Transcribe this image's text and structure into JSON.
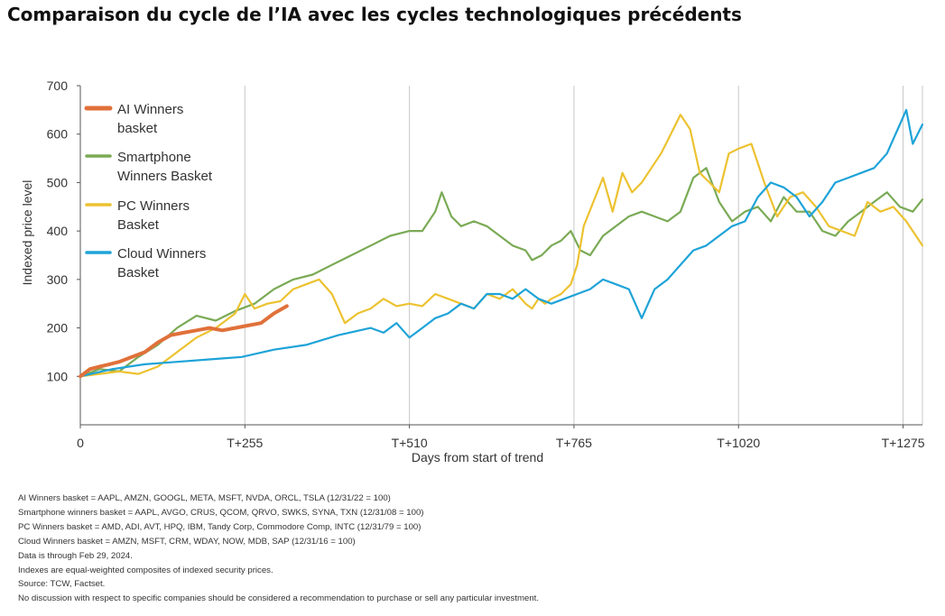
{
  "page_title": "Comparaison du cycle de l’IA avec les cycles technologiques précédents",
  "chart_data": {
    "type": "line",
    "xlabel": "Days from start of trend",
    "ylabel": "Indexed price level",
    "xlim": [
      0,
      1305
    ],
    "ylim": [
      0,
      700
    ],
    "y_ticks": [
      "100",
      "200",
      "300",
      "400",
      "500",
      "600",
      "700"
    ],
    "x_ticks": [
      {
        "value": 0,
        "label": "0"
      },
      {
        "value": 255,
        "label": "T+255"
      },
      {
        "value": 510,
        "label": "T+510"
      },
      {
        "value": 765,
        "label": "T+765"
      },
      {
        "value": 1020,
        "label": "T+1020"
      },
      {
        "value": 1275,
        "label": "T+1275"
      }
    ],
    "grid": "vertical",
    "legend_position": "top-left",
    "series": [
      {
        "name": "Smartphone Winners Basket",
        "color": "#7aaa55",
        "x": [
          0,
          30,
          60,
          90,
          120,
          150,
          180,
          210,
          240,
          270,
          300,
          330,
          360,
          390,
          420,
          450,
          480,
          510,
          530,
          550,
          560,
          575,
          590,
          610,
          630,
          650,
          670,
          690,
          700,
          715,
          730,
          745,
          760,
          775,
          790,
          810,
          830,
          850,
          870,
          890,
          910,
          930,
          950,
          970,
          990,
          1010,
          1030,
          1050,
          1070,
          1090,
          1110,
          1130,
          1150,
          1170,
          1190,
          1210,
          1230,
          1250,
          1270,
          1290,
          1305
        ],
        "values": [
          100,
          115,
          110,
          140,
          165,
          200,
          225,
          215,
          235,
          250,
          280,
          300,
          310,
          330,
          350,
          370,
          390,
          400,
          400,
          440,
          480,
          430,
          410,
          420,
          410,
          390,
          370,
          360,
          340,
          350,
          370,
          380,
          400,
          360,
          350,
          390,
          410,
          430,
          440,
          430,
          420,
          440,
          510,
          530,
          460,
          420,
          440,
          450,
          420,
          470,
          440,
          440,
          400,
          390,
          420,
          440,
          460,
          480,
          450,
          440,
          465
        ]
      },
      {
        "name": "PC Winners Basket",
        "color": "#ecc230",
        "x": [
          0,
          30,
          60,
          90,
          120,
          150,
          180,
          210,
          240,
          255,
          270,
          290,
          310,
          330,
          350,
          370,
          390,
          410,
          430,
          450,
          470,
          490,
          510,
          530,
          550,
          570,
          590,
          610,
          630,
          650,
          670,
          690,
          700,
          710,
          720,
          730,
          745,
          760,
          770,
          780,
          795,
          810,
          825,
          840,
          855,
          870,
          885,
          900,
          915,
          930,
          945,
          960,
          975,
          990,
          1005,
          1020,
          1040,
          1060,
          1080,
          1100,
          1120,
          1140,
          1160,
          1180,
          1200,
          1220,
          1240,
          1260,
          1280,
          1295,
          1305
        ],
        "values": [
          100,
          105,
          110,
          105,
          120,
          150,
          180,
          200,
          230,
          270,
          240,
          250,
          255,
          280,
          290,
          300,
          270,
          210,
          230,
          240,
          260,
          245,
          250,
          245,
          270,
          260,
          250,
          240,
          270,
          260,
          280,
          250,
          240,
          260,
          250,
          260,
          270,
          290,
          330,
          410,
          460,
          510,
          440,
          520,
          480,
          500,
          530,
          560,
          600,
          640,
          610,
          520,
          500,
          480,
          560,
          570,
          580,
          500,
          430,
          470,
          480,
          450,
          410,
          400,
          390,
          460,
          440,
          450,
          420,
          390,
          370
        ]
      },
      {
        "name": "Cloud Winners Basket",
        "color": "#1ea3d8",
        "x": [
          0,
          50,
          100,
          150,
          200,
          250,
          300,
          350,
          400,
          450,
          470,
          490,
          510,
          530,
          550,
          570,
          590,
          610,
          630,
          650,
          670,
          690,
          710,
          730,
          750,
          770,
          790,
          810,
          830,
          850,
          860,
          870,
          880,
          890,
          910,
          930,
          950,
          970,
          990,
          1010,
          1030,
          1050,
          1070,
          1090,
          1110,
          1130,
          1150,
          1170,
          1190,
          1210,
          1230,
          1250,
          1260,
          1270,
          1280,
          1290,
          1305
        ],
        "values": [
          100,
          115,
          125,
          130,
          135,
          140,
          155,
          165,
          185,
          200,
          190,
          210,
          180,
          200,
          220,
          230,
          250,
          240,
          270,
          270,
          260,
          280,
          260,
          250,
          260,
          270,
          280,
          300,
          290,
          280,
          250,
          220,
          250,
          280,
          300,
          330,
          360,
          370,
          390,
          410,
          420,
          470,
          500,
          490,
          470,
          430,
          460,
          500,
          510,
          520,
          530,
          560,
          590,
          620,
          650,
          580,
          620
        ]
      },
      {
        "name": "AI Winners basket",
        "color": "#e0713a",
        "x": [
          0,
          15,
          30,
          45,
          60,
          80,
          100,
          120,
          140,
          160,
          180,
          200,
          220,
          240,
          260,
          280,
          300,
          320
        ],
        "values": [
          100,
          115,
          120,
          125,
          130,
          140,
          150,
          170,
          185,
          190,
          195,
          200,
          195,
          200,
          205,
          210,
          230,
          245
        ]
      }
    ],
    "legend": [
      {
        "line1": "AI Winners",
        "line2": "basket",
        "color": "#e0713a"
      },
      {
        "line1": "Smartphone",
        "line2": "Winners Basket",
        "color": "#7aaa55"
      },
      {
        "line1": "PC Winners",
        "line2": "Basket",
        "color": "#ecc230"
      },
      {
        "line1": "Cloud Winners",
        "line2": "Basket",
        "color": "#1ea3d8"
      }
    ]
  },
  "footnotes": [
    "AI Winners basket = AAPL, AMZN, GOOGL, META, MSFT, NVDA, ORCL, TSLA (12/31/22 = 100)",
    "Smartphone winners basket = AAPL, AVGO, CRUS, QCOM, QRVO, SWKS, SYNA, TXN (12/31/08 = 100)",
    "PC Winners basket = AMD, ADI, AVT, HPQ, IBM, Tandy Corp, Commodore Comp, INTC (12/31/79 = 100)",
    "Cloud Winners basket = AMZN, MSFT, CRM, WDAY, NOW, MDB, SAP (12/31/16 = 100)",
    "Data is through Feb 29, 2024.",
    "Indexes are equal-weighted composites of indexed security prices.",
    "Source: TCW, Factset.",
    "No discussion with respect to specific companies should be considered a recommendation to purchase or sell any particular investment."
  ]
}
